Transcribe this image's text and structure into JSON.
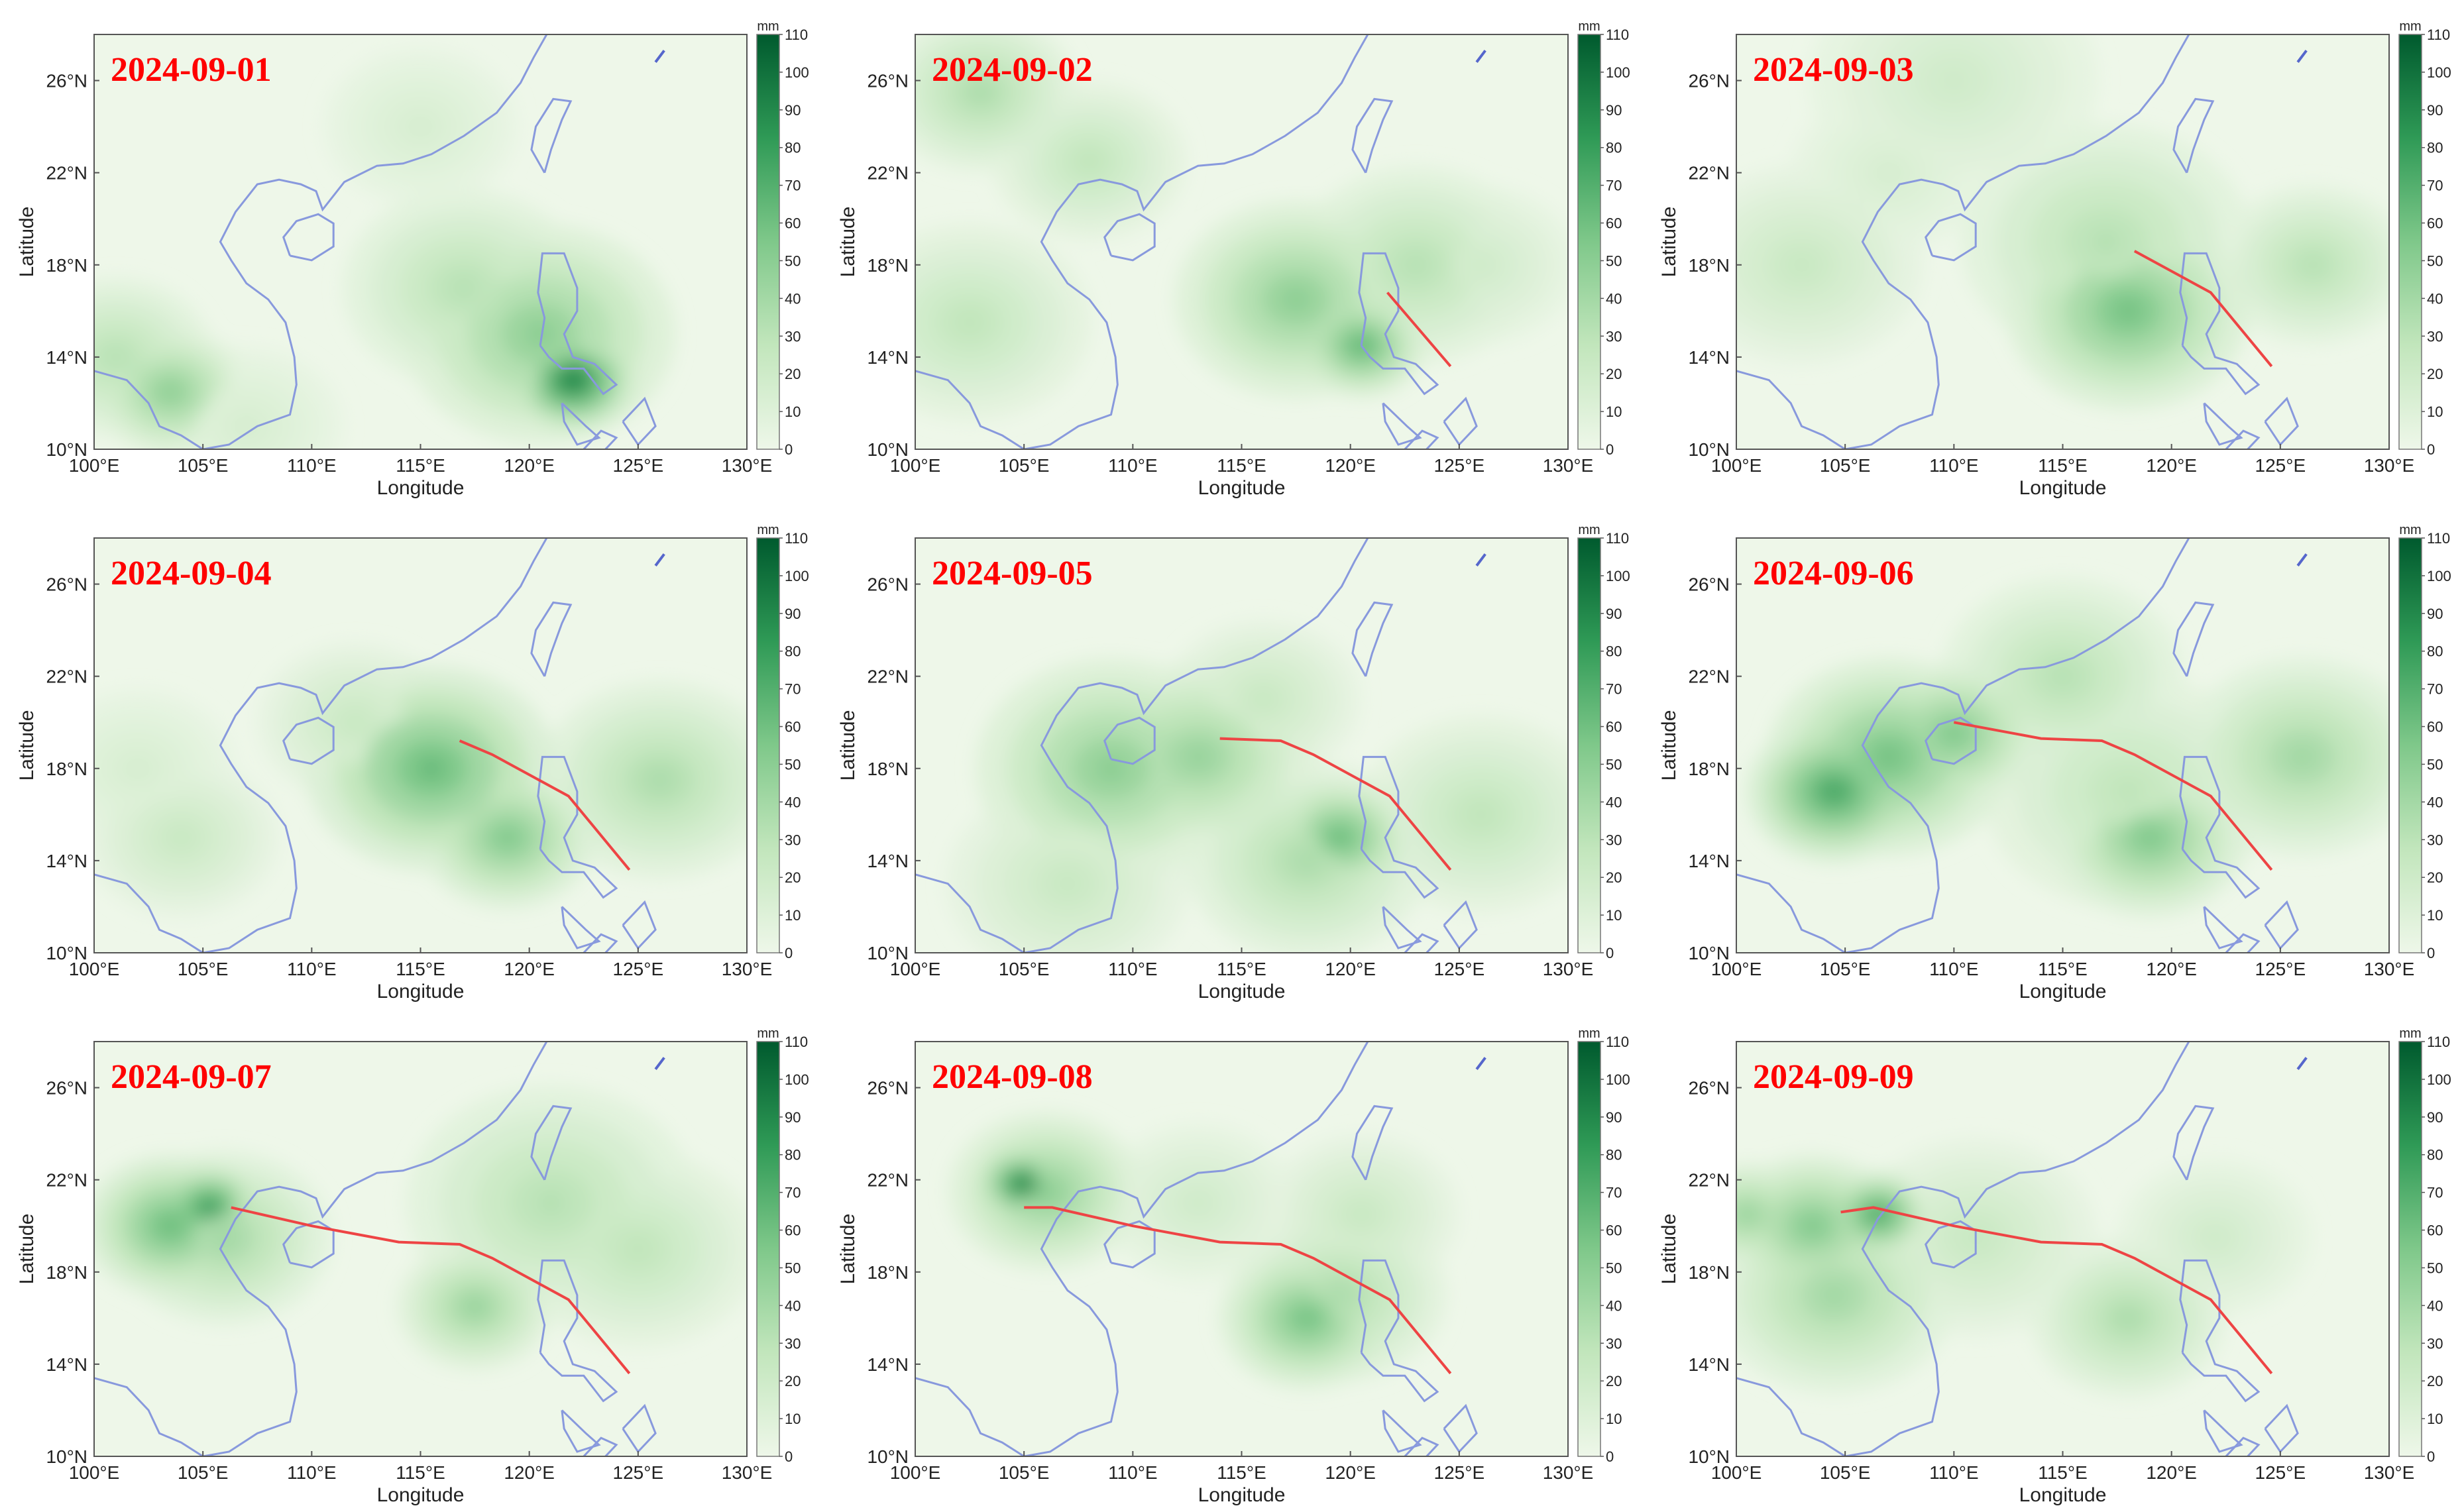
{
  "x_axis": {
    "label": "Longitude",
    "ticks": [
      "100°E",
      "105°E",
      "110°E",
      "115°E",
      "120°E",
      "125°E",
      "130°E"
    ]
  },
  "y_axis": {
    "label": "Latitude",
    "ticks": [
      "10°N",
      "14°N",
      "18°N",
      "22°N",
      "26°N"
    ]
  },
  "colorbar": {
    "unit": "mm",
    "ticks": [
      "0",
      "10",
      "20",
      "30",
      "40",
      "50",
      "60",
      "70",
      "80",
      "90",
      "100",
      "110"
    ],
    "colors": {
      "low": "#eef7e9",
      "mid": "#7fc88a",
      "high": "#005a2e"
    }
  },
  "colors": {
    "land_outline": "#8899dd",
    "track": "#ee4444",
    "date_label": "#ff0000",
    "background": "#eef7e9"
  },
  "chart_data": {
    "type": "heatmap",
    "lon_range": [
      100,
      130
    ],
    "lat_range": [
      10,
      28
    ],
    "value_range": [
      0,
      110
    ],
    "panels": [
      {
        "date": "2024-09-01",
        "blobs": [
          [
            122,
            13,
            110,
            1.3
          ],
          [
            120.5,
            15,
            55,
            2.8
          ],
          [
            117,
            17,
            35,
            2.5
          ],
          [
            103.5,
            12.5,
            55,
            1.6
          ],
          [
            101,
            14,
            35,
            2
          ],
          [
            107,
            11,
            15,
            2
          ],
          [
            115,
            24,
            15,
            2
          ]
        ],
        "track": []
      },
      {
        "date": "2024-09-02",
        "blobs": [
          [
            120.5,
            14.5,
            75,
            1.3
          ],
          [
            117.5,
            16.5,
            55,
            2.5
          ],
          [
            123,
            18,
            35,
            2.5
          ],
          [
            103,
            25.5,
            40,
            2
          ],
          [
            108,
            22.5,
            30,
            2
          ],
          [
            102.5,
            15.5,
            30,
            2.5
          ],
          [
            126,
            18,
            20,
            2
          ]
        ],
        "track": [
          [
            121.7,
            16.8
          ],
          [
            124.6,
            13.6
          ]
        ]
      },
      {
        "date": "2024-09-03",
        "blobs": [
          [
            118,
            16,
            65,
            2.5
          ],
          [
            117,
            19,
            35,
            3
          ],
          [
            126.5,
            18,
            35,
            2
          ],
          [
            103,
            18,
            25,
            2.5
          ],
          [
            107,
            22,
            15,
            2
          ],
          [
            110,
            26,
            20,
            3
          ]
        ],
        "track": [
          [
            118.3,
            18.6
          ],
          [
            121.8,
            16.8
          ],
          [
            124.6,
            13.6
          ]
        ]
      },
      {
        "date": "2024-09-04",
        "blobs": [
          [
            115.5,
            18,
            70,
            2.6
          ],
          [
            119,
            15,
            60,
            1.8
          ],
          [
            126,
            17.5,
            40,
            2.5
          ],
          [
            104,
            15,
            25,
            2
          ],
          [
            112,
            20,
            25,
            2
          ],
          [
            102,
            18,
            15,
            2
          ]
        ],
        "track": [
          [
            116.8,
            19.2
          ],
          [
            118.3,
            18.6
          ],
          [
            121.8,
            16.8
          ],
          [
            124.6,
            13.6
          ]
        ]
      },
      {
        "date": "2024-09-05",
        "blobs": [
          [
            109,
            18,
            55,
            2.8
          ],
          [
            113,
            18.5,
            50,
            2.4
          ],
          [
            119.5,
            15,
            70,
            1.5
          ],
          [
            118,
            14,
            40,
            2.5
          ],
          [
            126,
            16,
            30,
            2.5
          ],
          [
            107,
            13,
            25,
            2.5
          ],
          [
            116,
            21,
            25,
            2
          ]
        ],
        "track": [
          [
            114,
            19.3
          ],
          [
            116.8,
            19.2
          ],
          [
            118.3,
            18.6
          ],
          [
            121.8,
            16.8
          ],
          [
            124.6,
            13.6
          ]
        ]
      },
      {
        "date": "2024-09-06",
        "blobs": [
          [
            104.5,
            17,
            85,
            1.8
          ],
          [
            107,
            18.5,
            65,
            2.5
          ],
          [
            110,
            19.5,
            60,
            1.8
          ],
          [
            119,
            15,
            60,
            2
          ],
          [
            126,
            18.5,
            45,
            2.5
          ],
          [
            115,
            22,
            35,
            2.5
          ],
          [
            118,
            17,
            30,
            3
          ]
        ],
        "track": [
          [
            110,
            20
          ],
          [
            114,
            19.3
          ],
          [
            116.8,
            19.2
          ],
          [
            118.3,
            18.6
          ],
          [
            121.8,
            16.8
          ],
          [
            124.6,
            13.6
          ]
        ]
      },
      {
        "date": "2024-09-07",
        "blobs": [
          [
            105.3,
            20.8,
            95,
            1.1
          ],
          [
            103.5,
            20,
            70,
            1.8
          ],
          [
            106,
            19.5,
            45,
            2.2
          ],
          [
            117.5,
            16.5,
            50,
            1.6
          ],
          [
            121,
            21,
            35,
            3
          ],
          [
            125,
            19,
            30,
            2.5
          ]
        ],
        "track": [
          [
            106.3,
            20.8
          ],
          [
            110,
            20
          ],
          [
            114,
            19.3
          ],
          [
            116.8,
            19.2
          ],
          [
            118.3,
            18.6
          ],
          [
            121.8,
            16.8
          ],
          [
            124.6,
            13.6
          ]
        ]
      },
      {
        "date": "2024-09-08",
        "blobs": [
          [
            105,
            21.8,
            110,
            1.0
          ],
          [
            106,
            21.5,
            55,
            2.0
          ],
          [
            118,
            16,
            65,
            1.8
          ],
          [
            119.5,
            17,
            40,
            2.2
          ],
          [
            113,
            21,
            20,
            2
          ],
          [
            120.5,
            20.5,
            25,
            2
          ]
        ],
        "track": [
          [
            105,
            20.8
          ],
          [
            106.3,
            20.8
          ],
          [
            110,
            20
          ],
          [
            114,
            19.3
          ],
          [
            116.8,
            19.2
          ],
          [
            118.3,
            18.6
          ],
          [
            121.8,
            16.8
          ],
          [
            124.6,
            13.6
          ]
        ]
      },
      {
        "date": "2024-09-09",
        "blobs": [
          [
            106.5,
            20.5,
            85,
            1.1
          ],
          [
            103.5,
            20,
            60,
            1.8
          ],
          [
            100.5,
            20.5,
            50,
            1.3
          ],
          [
            104.5,
            17,
            45,
            2.5
          ],
          [
            118,
            16,
            40,
            2
          ],
          [
            111,
            19.5,
            25,
            2.5
          ],
          [
            122,
            19.5,
            20,
            2
          ]
        ],
        "track": [
          [
            104.8,
            20.6
          ],
          [
            106.3,
            20.8
          ],
          [
            110,
            20
          ],
          [
            114,
            19.3
          ],
          [
            116.8,
            19.2
          ],
          [
            118.3,
            18.6
          ],
          [
            121.8,
            16.8
          ],
          [
            124.6,
            13.6
          ]
        ]
      }
    ]
  }
}
